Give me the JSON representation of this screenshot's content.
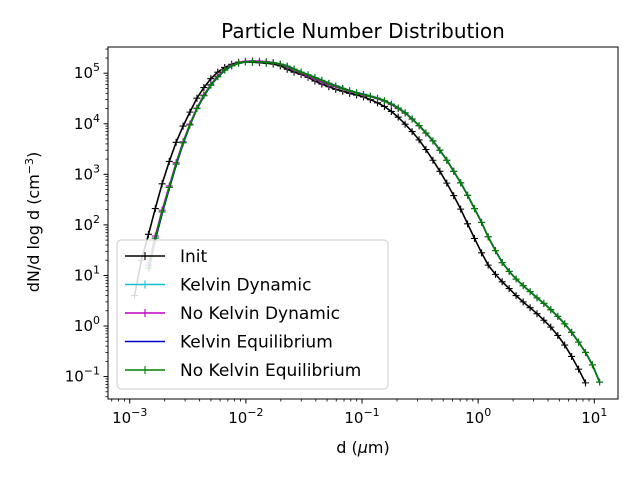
{
  "chart_data": {
    "type": "line",
    "title": "Particle Number Distribution",
    "xlabel": "d (μm)",
    "ylabel": "dN/d log d (cm⁻³)",
    "x_scale": "log",
    "y_scale": "log",
    "xlim": [
      0.00065,
      16
    ],
    "ylim": [
      0.036,
      330000
    ],
    "x_ticks": [
      {
        "value": 0.001,
        "base": "10",
        "exp": "−3"
      },
      {
        "value": 0.01,
        "base": "10",
        "exp": "−2"
      },
      {
        "value": 0.1,
        "base": "10",
        "exp": "−1"
      },
      {
        "value": 1,
        "base": "10",
        "exp": "0"
      },
      {
        "value": 10,
        "base": "10",
        "exp": "1"
      }
    ],
    "y_ticks": [
      {
        "value": 0.1,
        "base": "10",
        "exp": "−1"
      },
      {
        "value": 1,
        "base": "10",
        "exp": "0"
      },
      {
        "value": 10,
        "base": "10",
        "exp": "1"
      },
      {
        "value": 100,
        "base": "10",
        "exp": "2"
      },
      {
        "value": 1000,
        "base": "10",
        "exp": "3"
      },
      {
        "value": 10000,
        "base": "10",
        "exp": "4"
      },
      {
        "value": 100000,
        "base": "10",
        "exp": "5"
      }
    ],
    "grid": false,
    "legend_position": "lower-left",
    "series": [
      {
        "name": "Init",
        "color": "#000000",
        "marker": "+",
        "x": [
          0.0011,
          0.00126,
          0.00145,
          0.00166,
          0.0019,
          0.00219,
          0.00251,
          0.00288,
          0.0033,
          0.00379,
          0.00435,
          0.00499,
          0.00573,
          0.00657,
          0.00754,
          0.00865,
          0.00992,
          0.0114,
          0.0131,
          0.015,
          0.0172,
          0.0198,
          0.0227,
          0.026,
          0.0299,
          0.0343,
          0.0393,
          0.0451,
          0.0518,
          0.0594,
          0.0682,
          0.0782,
          0.0898,
          0.103,
          0.118,
          0.136,
          0.156,
          0.179,
          0.205,
          0.235,
          0.27,
          0.31,
          0.355,
          0.408,
          0.468,
          0.537,
          0.616,
          0.707,
          0.811,
          0.93,
          1.07,
          1.22,
          1.41,
          1.61,
          1.85,
          2.12,
          2.44,
          2.8,
          3.21,
          3.68,
          4.22,
          4.85,
          5.56,
          6.38,
          7.32,
          8.4
        ],
        "y": [
          4,
          20,
          65,
          210,
          650,
          1800,
          4300,
          9000,
          17000,
          32000,
          52000,
          78000,
          105000,
          130000,
          150000,
          165000,
          168000,
          165000,
          162000,
          158000,
          152000,
          140000,
          120000,
          105000,
          95000,
          83000,
          70000,
          61000,
          54000,
          48000,
          44000,
          40000,
          37000,
          34000,
          30000,
          26000,
          22000,
          17500,
          13500,
          9800,
          7000,
          4800,
          3100,
          1900,
          1150,
          670,
          380,
          205,
          105,
          54,
          28,
          16,
          10.5,
          7.5,
          5.5,
          4,
          3,
          2.3,
          1.75,
          1.3,
          0.95,
          0.65,
          0.42,
          0.25,
          0.14,
          0.075
        ]
      },
      {
        "name": "Kelvin Dynamic",
        "color": "#17becf",
        "marker": "+",
        "x": [
          0.00145,
          0.00166,
          0.0019,
          0.00219,
          0.00251,
          0.00288,
          0.0033,
          0.00379,
          0.00435,
          0.00499,
          0.00573,
          0.00657,
          0.00754,
          0.00865,
          0.00992,
          0.0114,
          0.0131,
          0.015,
          0.0172,
          0.0198,
          0.0227,
          0.026,
          0.0299,
          0.0343,
          0.0393,
          0.0451,
          0.0518,
          0.0594,
          0.0682,
          0.0782,
          0.0898,
          0.103,
          0.118,
          0.136,
          0.156,
          0.179,
          0.205,
          0.235,
          0.27,
          0.31,
          0.355,
          0.408,
          0.468,
          0.537,
          0.616,
          0.707,
          0.811,
          0.93,
          1.07,
          1.22,
          1.41,
          1.61,
          1.85,
          2.12,
          2.44,
          2.8,
          3.21,
          3.68,
          4.22,
          4.85,
          5.56,
          6.38,
          7.32,
          8.4,
          9.64,
          11.1
        ],
        "y": [
          14,
          55,
          180,
          550,
          1600,
          4200,
          9500,
          20000,
          36000,
          58000,
          85000,
          115000,
          140000,
          158000,
          168000,
          170000,
          168000,
          165000,
          160000,
          152000,
          138000,
          120000,
          105000,
          93000,
          82000,
          72000,
          63000,
          56000,
          50000,
          45000,
          41000,
          38000,
          35000,
          32000,
          28500,
          24500,
          20500,
          16500,
          12500,
          9200,
          6600,
          4600,
          3000,
          1900,
          1150,
          680,
          385,
          210,
          112,
          58,
          31,
          18,
          12,
          8.5,
          6.3,
          4.8,
          3.6,
          2.8,
          2.1,
          1.55,
          1.1,
          0.75,
          0.48,
          0.3,
          0.17,
          0.078
        ]
      },
      {
        "name": "No Kelvin Dynamic",
        "color": "#bf00bf",
        "marker": "+",
        "x": [
          0.00145,
          0.00166,
          0.0019,
          0.00219,
          0.00251,
          0.00288,
          0.0033,
          0.00379,
          0.00435,
          0.00499,
          0.00573,
          0.00657,
          0.00754,
          0.00865,
          0.00992,
          0.0114,
          0.0131,
          0.015,
          0.0172,
          0.0198,
          0.0227,
          0.026,
          0.0299,
          0.0343,
          0.0393,
          0.0451,
          0.0518,
          0.0594,
          0.0682,
          0.0782,
          0.0898,
          0.103,
          0.118,
          0.136,
          0.156,
          0.179,
          0.205,
          0.235,
          0.27,
          0.31,
          0.355,
          0.408,
          0.468,
          0.537,
          0.616,
          0.707,
          0.811,
          0.93,
          1.07,
          1.22,
          1.41,
          1.61,
          1.85,
          2.12,
          2.44,
          2.8,
          3.21,
          3.68,
          4.22,
          4.85,
          5.56,
          6.38,
          7.32,
          8.4,
          9.64,
          11.1
        ],
        "y": [
          16,
          60,
          195,
          590,
          1700,
          4400,
          9900,
          20500,
          37000,
          60000,
          88000,
          118000,
          143000,
          161000,
          172000,
          175000,
          173000,
          169000,
          162000,
          150000,
          134000,
          116000,
          101000,
          88000,
          77000,
          68000,
          60000,
          54000,
          49000,
          44000,
          40500,
          37500,
          34500,
          31500,
          28000,
          24000,
          20000,
          16200,
          12300,
          9100,
          6500,
          4550,
          3000,
          1900,
          1150,
          680,
          385,
          210,
          112,
          58,
          31,
          18,
          12,
          8.5,
          6.3,
          4.8,
          3.6,
          2.8,
          2.1,
          1.55,
          1.1,
          0.75,
          0.48,
          0.3,
          0.17,
          0.078
        ]
      },
      {
        "name": "Kelvin Equilibrium",
        "color": "#0000bf",
        "marker": "",
        "x": [
          0.00145,
          0.00166,
          0.0019,
          0.00219,
          0.00251,
          0.00288,
          0.0033,
          0.00379,
          0.00435,
          0.00499,
          0.00573,
          0.00657,
          0.00754,
          0.00865,
          0.00992,
          0.0114,
          0.0131,
          0.015,
          0.0172,
          0.0198,
          0.0227,
          0.026,
          0.0299,
          0.0343,
          0.0393,
          0.0451,
          0.0518,
          0.0594,
          0.0682,
          0.0782,
          0.0898,
          0.103,
          0.118,
          0.136,
          0.156,
          0.179,
          0.205,
          0.235,
          0.27,
          0.31,
          0.355,
          0.408,
          0.468,
          0.537,
          0.616,
          0.707,
          0.811,
          0.93,
          1.07,
          1.22,
          1.41,
          1.61,
          1.85,
          2.12,
          2.44,
          2.8,
          3.21,
          3.68,
          4.22,
          4.85,
          5.56,
          6.38,
          7.32,
          8.4,
          9.64,
          11.1
        ],
        "y": [
          12,
          50,
          165,
          520,
          1500,
          4000,
          9200,
          19500,
          35000,
          57000,
          84000,
          113000,
          138000,
          157000,
          167000,
          170000,
          168000,
          166000,
          161000,
          153000,
          140000,
          122000,
          106000,
          94000,
          83000,
          73000,
          64000,
          57000,
          51000,
          45500,
          41500,
          38500,
          35500,
          32500,
          28800,
          24800,
          20700,
          16700,
          12600,
          9300,
          6650,
          4620,
          3020,
          1910,
          1150,
          680,
          385,
          210,
          112,
          58,
          31,
          18,
          12,
          8.5,
          6.3,
          4.8,
          3.6,
          2.8,
          2.1,
          1.55,
          1.1,
          0.75,
          0.48,
          0.3,
          0.17,
          0.078
        ]
      },
      {
        "name": "No Kelvin Equilibrium",
        "color": "#008000",
        "marker": "+",
        "x": [
          0.00145,
          0.00166,
          0.0019,
          0.00219,
          0.00251,
          0.00288,
          0.0033,
          0.00379,
          0.00435,
          0.00499,
          0.00573,
          0.00657,
          0.00754,
          0.00865,
          0.00992,
          0.0114,
          0.0131,
          0.015,
          0.0172,
          0.0198,
          0.0227,
          0.026,
          0.0299,
          0.0343,
          0.0393,
          0.0451,
          0.0518,
          0.0594,
          0.0682,
          0.0782,
          0.0898,
          0.103,
          0.118,
          0.136,
          0.156,
          0.179,
          0.205,
          0.235,
          0.27,
          0.31,
          0.355,
          0.408,
          0.468,
          0.537,
          0.616,
          0.707,
          0.811,
          0.93,
          1.07,
          1.22,
          1.41,
          1.61,
          1.85,
          2.12,
          2.44,
          2.8,
          3.21,
          3.68,
          4.22,
          4.85,
          5.56,
          6.38,
          7.32,
          8.4,
          9.64,
          11.1
        ],
        "y": [
          14,
          55,
          180,
          550,
          1600,
          4200,
          9500,
          20000,
          36000,
          58000,
          85000,
          115000,
          140000,
          158000,
          168000,
          170000,
          168000,
          165000,
          160000,
          152000,
          138000,
          120000,
          105000,
          93000,
          82000,
          72000,
          63000,
          56000,
          50000,
          45000,
          41000,
          38000,
          35000,
          32000,
          28500,
          24500,
          20500,
          16500,
          12500,
          9200,
          6600,
          4600,
          3000,
          1900,
          1150,
          680,
          385,
          210,
          112,
          58,
          31,
          18,
          12,
          8.5,
          6.3,
          4.8,
          3.6,
          2.8,
          2.1,
          1.55,
          1.1,
          0.75,
          0.48,
          0.3,
          0.17,
          0.078
        ]
      }
    ]
  }
}
